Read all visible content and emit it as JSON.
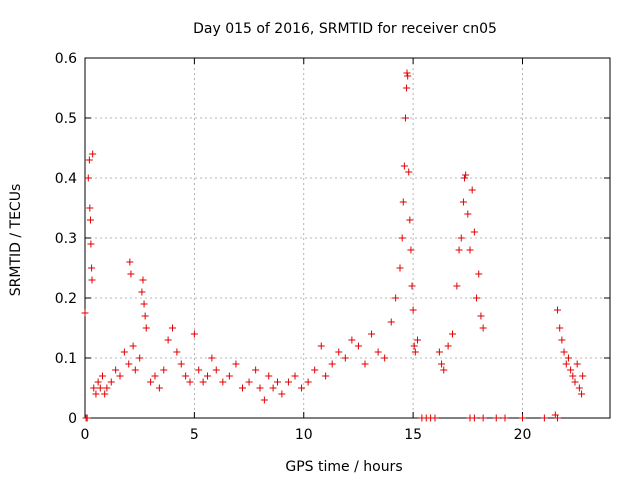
{
  "chart_data": {
    "type": "scatter",
    "title": "Day 015 of 2016, SRMTID for receiver cn05",
    "xlabel": "GPS time / hours",
    "ylabel": "SRMTID / TECUs",
    "xlim": [
      0,
      24
    ],
    "ylim": [
      0,
      0.6
    ],
    "grid": true,
    "marker": "+",
    "color": "#e00000",
    "x_ticks": [
      0,
      5,
      10,
      15,
      20
    ],
    "y_ticks": [
      0,
      0.1,
      0.2,
      0.3,
      0.4,
      0.5,
      0.6
    ],
    "x_tick_labels": [
      "0",
      "5",
      "10",
      "15",
      "20"
    ],
    "y_tick_labels": [
      "0",
      "0.1",
      "0.2",
      "0.3",
      "0.4",
      "0.5",
      "0.6"
    ],
    "series": [
      {
        "name": "SRMTID (cn05)",
        "points": [
          [
            0.0,
            0.175
          ],
          [
            0.05,
            0.0
          ],
          [
            0.1,
            0.0
          ],
          [
            0.15,
            0.4
          ],
          [
            0.2,
            0.43
          ],
          [
            0.22,
            0.35
          ],
          [
            0.25,
            0.33
          ],
          [
            0.27,
            0.29
          ],
          [
            0.3,
            0.25
          ],
          [
            0.32,
            0.23
          ],
          [
            0.35,
            0.44
          ],
          [
            0.4,
            0.05
          ],
          [
            0.5,
            0.04
          ],
          [
            0.6,
            0.06
          ],
          [
            0.7,
            0.05
          ],
          [
            0.8,
            0.07
          ],
          [
            0.9,
            0.04
          ],
          [
            1.0,
            0.05
          ],
          [
            1.2,
            0.06
          ],
          [
            1.4,
            0.08
          ],
          [
            1.6,
            0.07
          ],
          [
            1.8,
            0.11
          ],
          [
            2.0,
            0.09
          ],
          [
            2.05,
            0.26
          ],
          [
            2.1,
            0.24
          ],
          [
            2.2,
            0.12
          ],
          [
            2.3,
            0.08
          ],
          [
            2.5,
            0.1
          ],
          [
            2.6,
            0.21
          ],
          [
            2.65,
            0.23
          ],
          [
            2.7,
            0.19
          ],
          [
            2.75,
            0.17
          ],
          [
            2.8,
            0.15
          ],
          [
            3.0,
            0.06
          ],
          [
            3.2,
            0.07
          ],
          [
            3.4,
            0.05
          ],
          [
            3.6,
            0.08
          ],
          [
            3.8,
            0.13
          ],
          [
            4.0,
            0.15
          ],
          [
            4.2,
            0.11
          ],
          [
            4.4,
            0.09
          ],
          [
            4.6,
            0.07
          ],
          [
            4.8,
            0.06
          ],
          [
            5.0,
            0.14
          ],
          [
            5.2,
            0.08
          ],
          [
            5.4,
            0.06
          ],
          [
            5.6,
            0.07
          ],
          [
            5.8,
            0.1
          ],
          [
            6.0,
            0.08
          ],
          [
            6.3,
            0.06
          ],
          [
            6.6,
            0.07
          ],
          [
            6.9,
            0.09
          ],
          [
            7.2,
            0.05
          ],
          [
            7.5,
            0.06
          ],
          [
            7.8,
            0.08
          ],
          [
            8.0,
            0.05
          ],
          [
            8.2,
            0.03
          ],
          [
            8.4,
            0.07
          ],
          [
            8.6,
            0.05
          ],
          [
            8.8,
            0.06
          ],
          [
            9.0,
            0.04
          ],
          [
            9.3,
            0.06
          ],
          [
            9.6,
            0.07
          ],
          [
            9.9,
            0.05
          ],
          [
            10.2,
            0.06
          ],
          [
            10.5,
            0.08
          ],
          [
            10.8,
            0.12
          ],
          [
            11.0,
            0.07
          ],
          [
            11.3,
            0.09
          ],
          [
            11.6,
            0.11
          ],
          [
            11.9,
            0.1
          ],
          [
            12.2,
            0.13
          ],
          [
            12.5,
            0.12
          ],
          [
            12.8,
            0.09
          ],
          [
            13.1,
            0.14
          ],
          [
            13.4,
            0.11
          ],
          [
            13.7,
            0.1
          ],
          [
            14.0,
            0.16
          ],
          [
            14.2,
            0.2
          ],
          [
            14.4,
            0.25
          ],
          [
            14.5,
            0.3
          ],
          [
            14.55,
            0.36
          ],
          [
            14.6,
            0.42
          ],
          [
            14.65,
            0.5
          ],
          [
            14.7,
            0.55
          ],
          [
            14.72,
            0.575
          ],
          [
            14.75,
            0.57
          ],
          [
            14.8,
            0.41
          ],
          [
            14.85,
            0.33
          ],
          [
            14.9,
            0.28
          ],
          [
            14.95,
            0.22
          ],
          [
            15.0,
            0.18
          ],
          [
            15.05,
            0.12
          ],
          [
            15.1,
            0.11
          ],
          [
            15.2,
            0.13
          ],
          [
            15.4,
            0.0
          ],
          [
            15.6,
            0.0
          ],
          [
            15.8,
            0.0
          ],
          [
            16.0,
            0.0
          ],
          [
            16.2,
            0.11
          ],
          [
            16.3,
            0.09
          ],
          [
            16.4,
            0.08
          ],
          [
            16.6,
            0.12
          ],
          [
            16.8,
            0.14
          ],
          [
            17.0,
            0.22
          ],
          [
            17.1,
            0.28
          ],
          [
            17.2,
            0.3
          ],
          [
            17.3,
            0.36
          ],
          [
            17.35,
            0.4
          ],
          [
            17.4,
            0.405
          ],
          [
            17.5,
            0.34
          ],
          [
            17.6,
            0.28
          ],
          [
            17.7,
            0.38
          ],
          [
            17.8,
            0.31
          ],
          [
            17.9,
            0.2
          ],
          [
            18.0,
            0.24
          ],
          [
            18.1,
            0.17
          ],
          [
            18.2,
            0.15
          ],
          [
            17.6,
            0.0
          ],
          [
            17.8,
            0.0
          ],
          [
            18.2,
            0.0
          ],
          [
            18.8,
            0.0
          ],
          [
            19.2,
            0.0
          ],
          [
            20.0,
            0.0
          ],
          [
            21.0,
            0.0
          ],
          [
            21.5,
            0.005
          ],
          [
            21.6,
            0.0
          ],
          [
            21.6,
            0.18
          ],
          [
            21.7,
            0.15
          ],
          [
            21.8,
            0.13
          ],
          [
            21.9,
            0.11
          ],
          [
            22.0,
            0.09
          ],
          [
            22.1,
            0.1
          ],
          [
            22.2,
            0.08
          ],
          [
            22.3,
            0.07
          ],
          [
            22.4,
            0.06
          ],
          [
            22.5,
            0.09
          ],
          [
            22.6,
            0.05
          ],
          [
            22.7,
            0.04
          ],
          [
            22.75,
            0.07
          ]
        ]
      }
    ]
  }
}
